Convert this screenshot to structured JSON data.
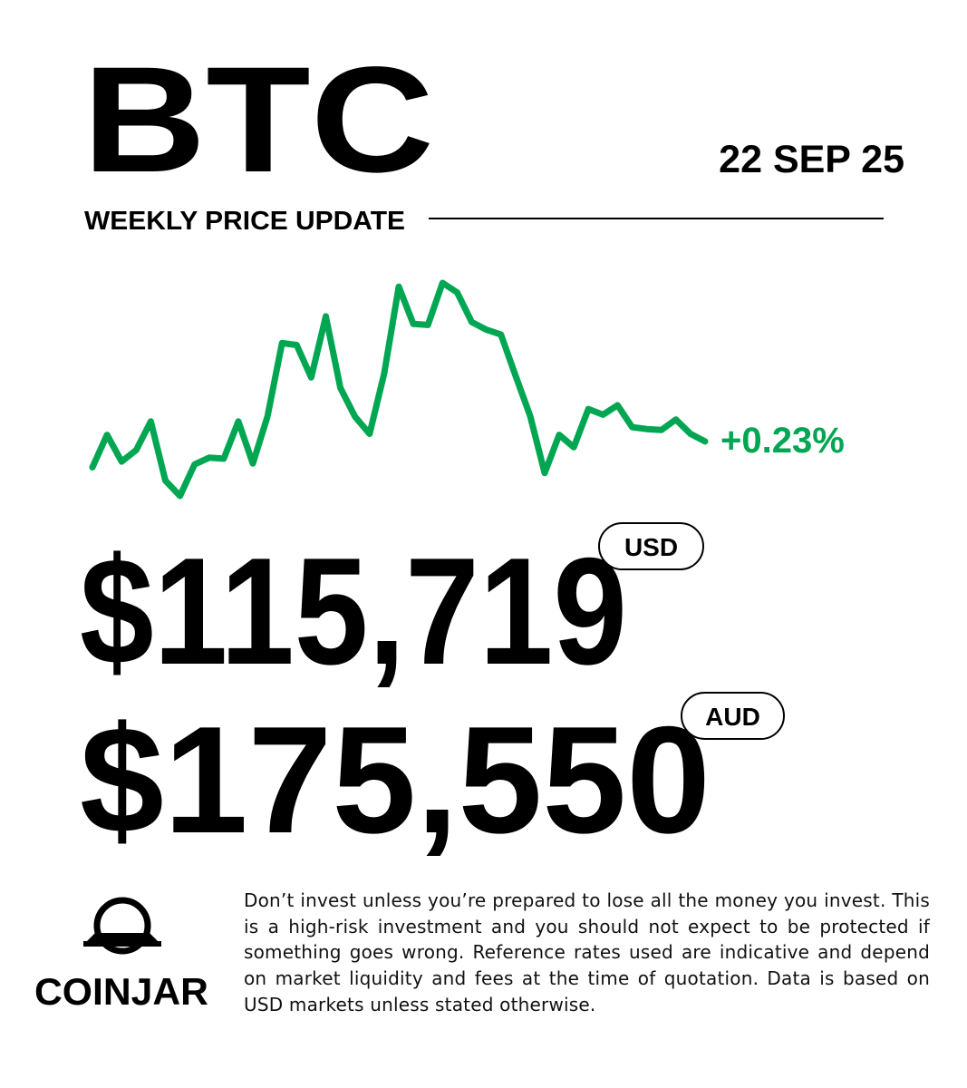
{
  "header": {
    "title": "BTC",
    "subtitle": "WEEKLY PRICE UPDATE",
    "date": "22 SEP 25"
  },
  "chart_data": {
    "type": "line",
    "color": "#00a651",
    "annotation": "+0.23%",
    "ylim": [
      115150,
      117380
    ],
    "values": [
      115450,
      115790,
      115510,
      115630,
      115930,
      115310,
      115150,
      115480,
      115550,
      115540,
      115930,
      115490,
      115980,
      116750,
      116730,
      116390,
      117030,
      116280,
      115980,
      115800,
      116430,
      117340,
      116950,
      116940,
      117380,
      117280,
      116970,
      116890,
      116840,
      116410,
      115990,
      115390,
      115790,
      115660,
      116060,
      116000,
      116100,
      115870,
      115850,
      115840,
      115950,
      115800,
      115720
    ]
  },
  "prices": [
    {
      "amount": "$115,719",
      "currency": "USD"
    },
    {
      "amount": "$175,550",
      "currency": "AUD"
    }
  ],
  "footer": {
    "brand": "COINJAR",
    "disclaimer": "Don’t invest unless you’re prepared to lose all the money you invest. This is a high-risk investment and you should not expect to be protected if something goes wrong. Reference rates used are indicative and depend on market liquidity and fees at the time of quotation. Data is based on USD markets unless stated otherwise."
  }
}
